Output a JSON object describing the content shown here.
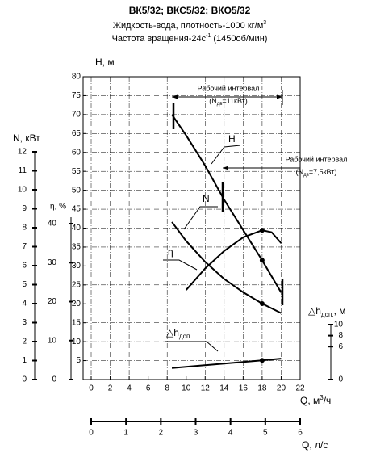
{
  "chart_data": {
    "type": "line",
    "title": "ВК5/32; ВКС5/32; ВКО5/32",
    "subtitle_1": {
      "text": "Жидкость-вода, плотность-1000 кг/м",
      "sup": "3"
    },
    "subtitle_2": {
      "text": "Частота вращения-24с",
      "sup": "-1",
      "rest": " (1450об/мин)"
    },
    "x_label": {
      "text": "Q, м",
      "sup": "3",
      "rest": "/ч"
    },
    "x2_label": "Q, л/с",
    "y_label": "Н, м",
    "y2_label": "N, кВт",
    "y3_label": "η, %",
    "y4_label": {
      "text": "△h",
      "sub": "доп.",
      "rest": ", м"
    },
    "xlim": [
      0,
      22
    ],
    "xticks": [
      0,
      2,
      4,
      6,
      8,
      10,
      12,
      14,
      16,
      18,
      20,
      22
    ],
    "x2lim": [
      0,
      6
    ],
    "x2ticks": [
      0,
      1,
      2,
      3,
      4,
      5,
      6
    ],
    "ylim": [
      0,
      80
    ],
    "yticks": [
      5,
      10,
      15,
      20,
      25,
      30,
      35,
      40,
      45,
      50,
      55,
      60,
      65,
      70,
      75,
      80
    ],
    "y2lim": [
      0,
      12
    ],
    "y2ticks": [
      0,
      1,
      2,
      3,
      4,
      5,
      6,
      7,
      8,
      9,
      10,
      11,
      12
    ],
    "y3lim": [
      0,
      40
    ],
    "y3ticks": [
      0,
      10,
      20,
      30,
      40
    ],
    "y4lim": [
      0,
      10
    ],
    "y4ticks": [
      0,
      6,
      8,
      10
    ],
    "grid": true,
    "annotations": [
      {
        "text": "Рабочий интервал",
        "sub_open": "(N",
        "sub": "дв",
        "sub_close": "=11кВт)"
      },
      {
        "text": "Рабочий интервал",
        "sub_open": "(N",
        "sub": "дв",
        "sub_close": "=7,5кВт)"
      }
    ],
    "series": [
      {
        "name": "H",
        "axis": "y",
        "color": "#000000",
        "x": [
          8.5,
          10,
          12,
          14,
          16,
          18,
          20
        ],
        "values": [
          70,
          64.5,
          56.5,
          47.5,
          39.5,
          31.5,
          23
        ],
        "markers": [
          18
        ]
      },
      {
        "name": "N",
        "axis": "y2",
        "color": "#000000",
        "x": [
          8.5,
          10,
          12,
          14,
          16,
          18,
          20
        ],
        "values": [
          8.3,
          7.3,
          6.2,
          5.3,
          4.6,
          4.0,
          3.5
        ],
        "markers": [
          18
        ]
      },
      {
        "name": "η",
        "axis": "y3",
        "color": "#000000",
        "x": [
          10,
          12,
          14,
          16,
          18,
          19,
          20
        ],
        "values": [
          23,
          28.5,
          33,
          36.5,
          38.3,
          37.8,
          35
        ],
        "markers": [
          18
        ]
      },
      {
        "name": "△h",
        "sub": "доп.",
        "axis": "y4",
        "color": "#000000",
        "x": [
          8.5,
          18,
          20
        ],
        "values": [
          2.1,
          3.5,
          3.8
        ],
        "markers": [
          18
        ]
      }
    ]
  }
}
